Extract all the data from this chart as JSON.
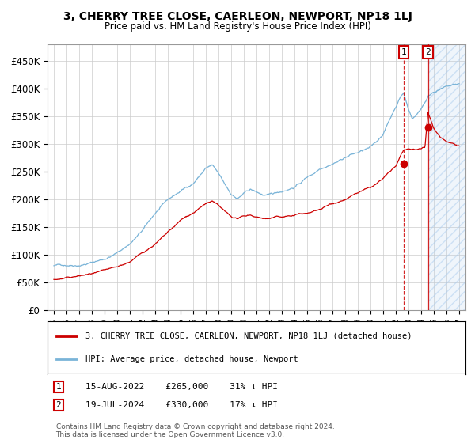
{
  "title": "3, CHERRY TREE CLOSE, CAERLEON, NEWPORT, NP18 1LJ",
  "subtitle": "Price paid vs. HM Land Registry's House Price Index (HPI)",
  "ylim": [
    0,
    480000
  ],
  "yticks": [
    0,
    50000,
    100000,
    150000,
    200000,
    250000,
    300000,
    350000,
    400000,
    450000
  ],
  "ytick_labels": [
    "£0",
    "£50K",
    "£100K",
    "£150K",
    "£200K",
    "£250K",
    "£300K",
    "£350K",
    "£400K",
    "£450K"
  ],
  "hpi_color": "#7ab4d8",
  "sale_color": "#cc0000",
  "background_color": "#ffffff",
  "grid_color": "#cccccc",
  "legend_label_sale": "3, CHERRY TREE CLOSE, CAERLEON, NEWPORT, NP18 1LJ (detached house)",
  "legend_label_hpi": "HPI: Average price, detached house, Newport",
  "sale1_date_label": "15-AUG-2022",
  "sale1_price_label": "£265,000",
  "sale1_pct_label": "31% ↓ HPI",
  "sale1_year": 2022.62,
  "sale1_price": 265000,
  "sale2_date_label": "19-JUL-2024",
  "sale2_price_label": "£330,000",
  "sale2_pct_label": "17% ↓ HPI",
  "sale2_year": 2024.54,
  "sale2_price": 330000,
  "footnote": "Contains HM Land Registry data © Crown copyright and database right 2024.\nThis data is licensed under the Open Government Licence v3.0."
}
